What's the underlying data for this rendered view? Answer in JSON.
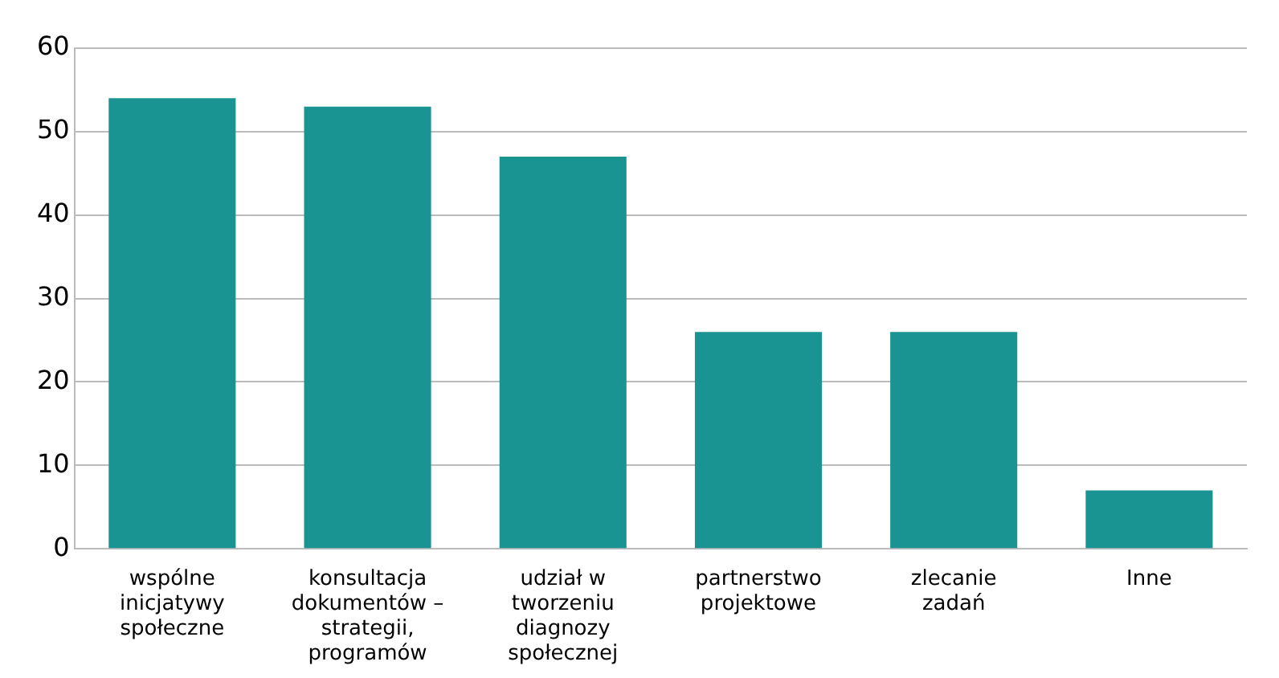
{
  "chart_data": {
    "type": "bar",
    "categories": [
      "wspólne inicjatywy społeczne",
      "konsultacja dokumentów – strategii, programów",
      "udział w tworzeniu diagnozy społecznej",
      "partnerstwo projektowe",
      "zlecanie zadań",
      "Inne"
    ],
    "values": [
      54,
      53,
      47,
      26,
      26,
      7
    ],
    "color": "#1a9393",
    "ylim": [
      0,
      60
    ],
    "yticks": [
      0,
      10,
      20,
      30,
      40,
      50,
      60
    ],
    "grid": "y"
  }
}
